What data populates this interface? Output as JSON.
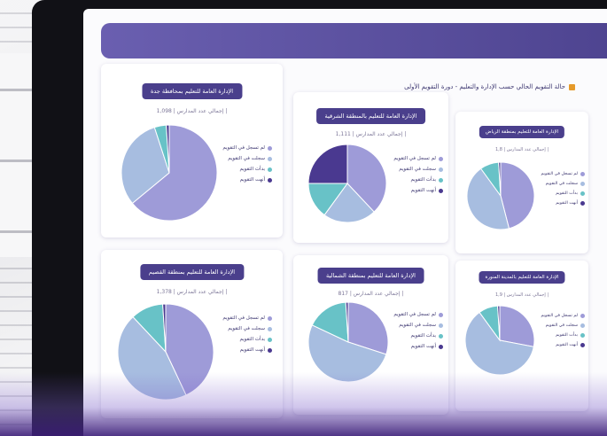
{
  "page_title": "حالة التقويم الحالي حسب الإدارة والتعليم - دورة التقويم الأولى",
  "legend_labels": [
    "لم تسجل في التقويم",
    "سجلت في التقويم",
    "بدأت التقويم",
    "أنهت التقويم"
  ],
  "colors": {
    "c1": "#9e9bd8",
    "c2": "#a7bde0",
    "c3": "#68c2c7",
    "c4": "#4a3990",
    "header": "#4a3f8c",
    "accent": "#e59a2a"
  },
  "cards": [
    {
      "title": "الإدارة العامة للتعليم بمحافظة جدة",
      "total_label": "إجمالي عدد المدارس | 1,098 |",
      "values": [
        64,
        31,
        4,
        1
      ]
    },
    {
      "title": "الإدارة العامة للتعليم بالمنطقة الشرقية",
      "total_label": "إجمالي عدد المدارس | 1,111 |",
      "values": [
        38,
        22,
        15,
        25
      ]
    },
    {
      "title": "الإدارة العامة للتعليم بمنطقة الرياض",
      "total_label": "إجمالي عدد المدارس | 1,8 |",
      "values": [
        46,
        44,
        9,
        1
      ]
    },
    {
      "title": "الإدارة العامة للتعليم بمنطقة القصيم",
      "total_label": "إجمالي عدد المدارس | 1,378 |",
      "values": [
        43,
        45,
        11,
        1
      ]
    },
    {
      "title": "الإدارة العامة للتعليم بمنطقة الشمالية",
      "total_label": "إجمالي عدد المدارس | 817 |",
      "values": [
        30,
        52,
        17,
        1
      ]
    },
    {
      "title": "الإدارة العامة للتعليم بالمدينة المنورة",
      "total_label": "إجمالي عدد المدارس | 1,9 |",
      "values": [
        28,
        62,
        9,
        1
      ]
    }
  ]
}
